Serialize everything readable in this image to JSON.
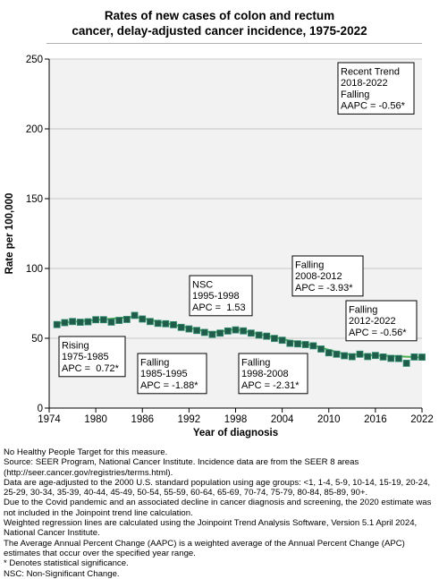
{
  "title_lines": [
    "Rates of new cases of colon and rectum",
    "cancer, delay-adjusted cancer incidence, 1975-2022"
  ],
  "chart_data": {
    "type": "scatter",
    "title": "Rates of new cases of colon and rectum cancer, delay-adjusted cancer incidence, 1975-2022",
    "xlabel": "Year of diagnosis",
    "ylabel": "Rate per 100,000",
    "xlim": [
      1974,
      2022
    ],
    "ylim": [
      0,
      250
    ],
    "xticks": [
      1974,
      1980,
      1986,
      1992,
      1998,
      2004,
      2010,
      2016,
      2022
    ],
    "yticks": [
      0,
      50,
      100,
      150,
      200,
      250
    ],
    "grid": true,
    "colors": {
      "marker": "#1f5c4a",
      "marker_edge": "#2e8b6e",
      "trend": "#4caf50",
      "plot_bg": "#f2f2f2",
      "grid": "#c8c8c8"
    },
    "points": [
      [
        1975,
        59.8
      ],
      [
        1976,
        61.2
      ],
      [
        1977,
        62.0
      ],
      [
        1978,
        61.5
      ],
      [
        1979,
        61.8
      ],
      [
        1980,
        63.3
      ],
      [
        1981,
        63.3
      ],
      [
        1982,
        61.6
      ],
      [
        1983,
        62.8
      ],
      [
        1984,
        63.5
      ],
      [
        1985,
        66.4
      ],
      [
        1986,
        63.8
      ],
      [
        1987,
        62.0
      ],
      [
        1988,
        60.7
      ],
      [
        1989,
        60.4
      ],
      [
        1990,
        59.7
      ],
      [
        1991,
        57.8
      ],
      [
        1992,
        56.7
      ],
      [
        1993,
        55.6
      ],
      [
        1994,
        54.2
      ],
      [
        1995,
        52.8
      ],
      [
        1996,
        53.7
      ],
      [
        1997,
        55.2
      ],
      [
        1998,
        56.0
      ],
      [
        1999,
        55.3
      ],
      [
        2000,
        53.7
      ],
      [
        2001,
        52.3
      ],
      [
        2002,
        51.5
      ],
      [
        2003,
        49.9
      ],
      [
        2004,
        48.6
      ],
      [
        2005,
        46.4
      ],
      [
        2006,
        46.0
      ],
      [
        2007,
        45.5
      ],
      [
        2008,
        44.6
      ],
      [
        2009,
        42.3
      ],
      [
        2010,
        39.6
      ],
      [
        2011,
        38.6
      ],
      [
        2012,
        37.5
      ],
      [
        2013,
        36.8
      ],
      [
        2014,
        38.6
      ],
      [
        2015,
        36.9
      ],
      [
        2016,
        37.7
      ],
      [
        2017,
        36.6
      ],
      [
        2018,
        35.6
      ],
      [
        2019,
        35.5
      ],
      [
        2021,
        36.6
      ],
      [
        2022,
        36.5
      ]
    ],
    "outlier_2020": [
      2020,
      32.1
    ],
    "trend_segments": [
      {
        "from": [
          1975,
          60.8
        ],
        "to": [
          1985,
          65.4
        ]
      },
      {
        "from": [
          1985,
          65.4
        ],
        "to": [
          1995,
          54.0
        ]
      },
      {
        "from": [
          1995,
          54.0
        ],
        "to": [
          1998,
          56.5
        ]
      },
      {
        "from": [
          1998,
          56.5
        ],
        "to": [
          2008,
          44.8
        ]
      },
      {
        "from": [
          2008,
          44.8
        ],
        "to": [
          2012,
          38.7
        ]
      },
      {
        "from": [
          2012,
          38.7
        ],
        "to": [
          2022,
          36.3
        ]
      }
    ],
    "annotations": [
      {
        "lines": [
          "Rising",
          "1975-1985",
          "APC =  0.72*"
        ]
      },
      {
        "lines": [
          "Falling",
          "1985-1995",
          "APC = -1.88*"
        ]
      },
      {
        "lines": [
          "NSC",
          "1995-1998",
          "APC =  1.53"
        ]
      },
      {
        "lines": [
          "Falling",
          "1998-2008",
          "APC = -2.31*"
        ]
      },
      {
        "lines": [
          "Falling",
          "2008-2012",
          "APC = -3.93*"
        ]
      },
      {
        "lines": [
          "Falling",
          "2012-2022",
          "APC = -0.56*"
        ]
      },
      {
        "lines": [
          "Recent Trend",
          "2018-2022",
          "Falling",
          "AAPC = -0.56*"
        ]
      }
    ]
  },
  "footnotes": [
    "No Healthy People Target for this measure.",
    "Source: SEER Program, National Cancer Institute. Incidence data are from the SEER 8 areas (http://seer.cancer.gov/registries/terms.html).",
    "Data are age-adjusted to the 2000 U.S. standard population using age groups: <1, 1-4, 5-9, 10-14, 15-19, 20-24, 25-29, 30-34, 35-39, 40-44, 45-49, 50-54, 55-59, 60-64, 65-69, 70-74, 75-79, 80-84, 85-89, 90+.",
    "Due to the Covid pandemic and an associated decline in cancer diagnosis and screening, the 2020 estimate was not included in the Joinpoint trend line calculation.",
    "Weighted regression lines are calculated using the Joinpoint Trend Analysis Software, Version 5.1 April 2024, National Cancer Institute.",
    "The Average Annual Percent Change (AAPC) is a weighted average of the Annual Percent Change (APC) estimates that occur over the specified year range.",
    "* Denotes statistical significance.",
    "NSC: Non-Significant Change."
  ]
}
